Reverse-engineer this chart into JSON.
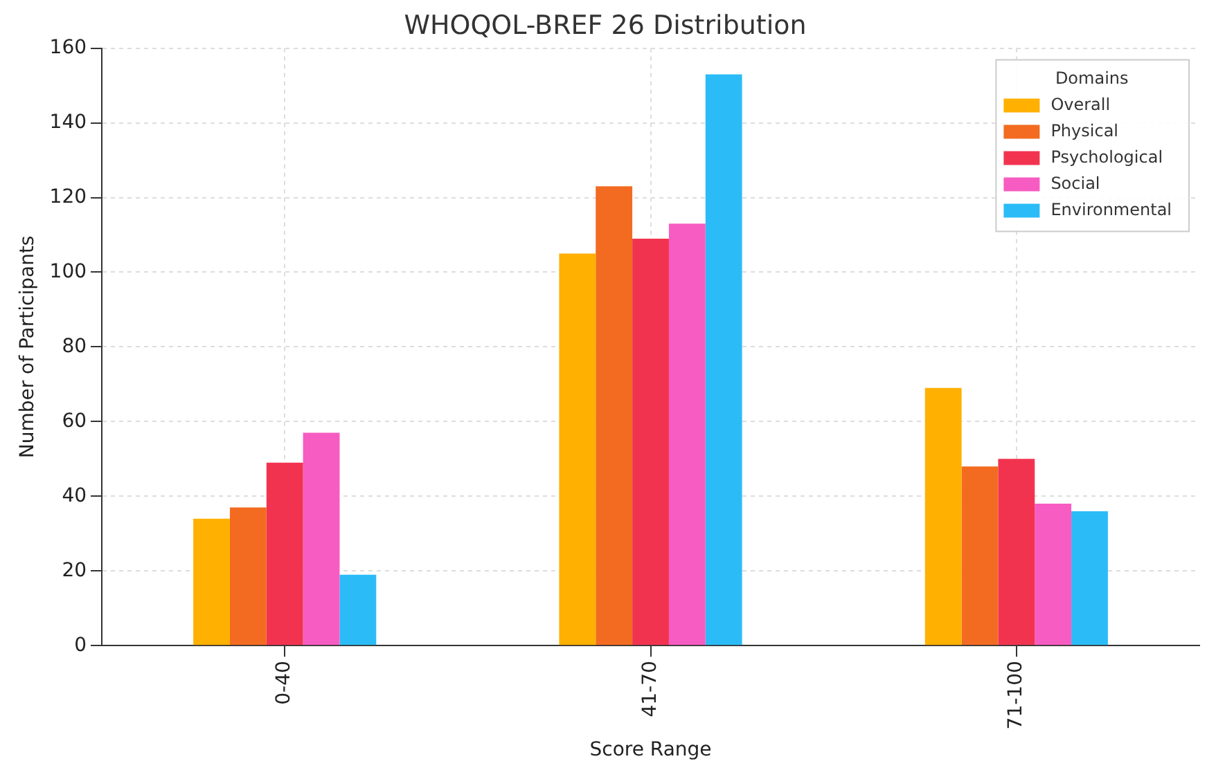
{
  "chart_data": {
    "type": "bar",
    "title": "WHOQOL-BREF 26 Distribution",
    "xlabel": "Score Range",
    "ylabel": "Number of Participants",
    "legend_title": "Domains",
    "categories": [
      "0-40",
      "41-70",
      "71-100"
    ],
    "series": [
      {
        "name": "Overall",
        "color": "#ffb000",
        "values": [
          34,
          105,
          69
        ]
      },
      {
        "name": "Physical",
        "color": "#f26b21",
        "values": [
          37,
          123,
          48
        ]
      },
      {
        "name": "Psychological",
        "color": "#f23350",
        "values": [
          49,
          109,
          50
        ]
      },
      {
        "name": "Social",
        "color": "#f75cc2",
        "values": [
          57,
          113,
          38
        ]
      },
      {
        "name": "Environmental",
        "color": "#2bbcf8",
        "values": [
          19,
          153,
          36
        ]
      }
    ],
    "ylim": [
      0,
      160
    ],
    "yticks": [
      0,
      20,
      40,
      60,
      80,
      100,
      120,
      140,
      160
    ],
    "grid": true,
    "legend": "top right"
  }
}
